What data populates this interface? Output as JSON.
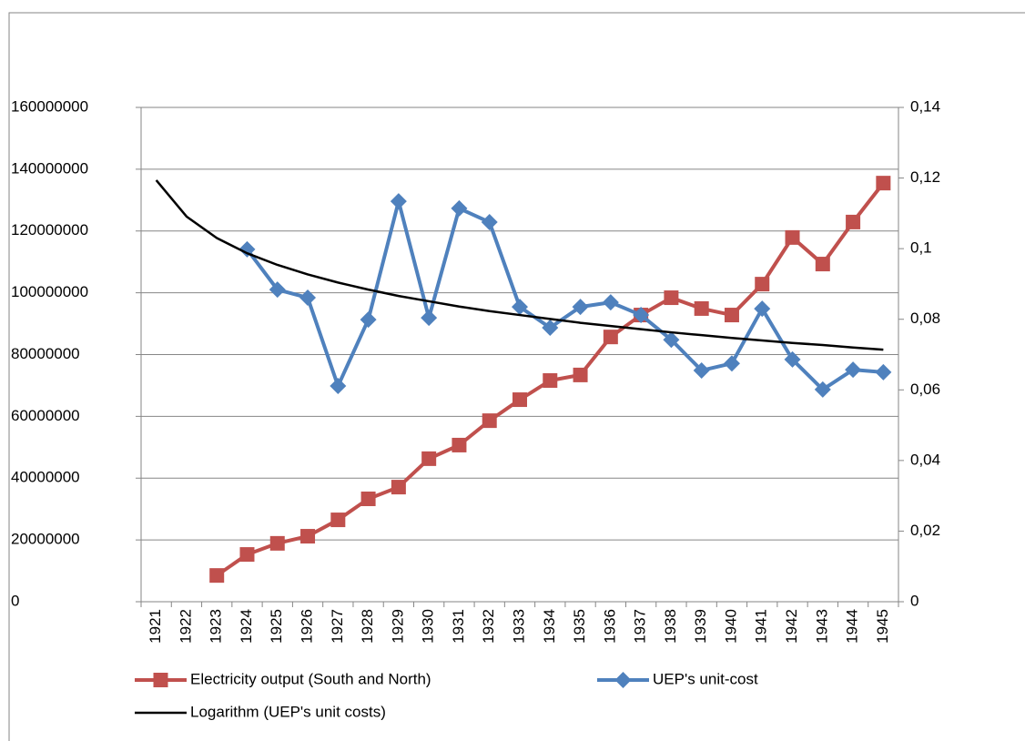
{
  "chart_data": {
    "type": "line",
    "categories": [
      "1921",
      "1922",
      "1923",
      "1924",
      "1925",
      "1926",
      "1927",
      "1928",
      "1929",
      "1930",
      "1931",
      "1932",
      "1933",
      "1934",
      "1935",
      "1936",
      "1937",
      "1938",
      "1939",
      "1940",
      "1941",
      "1942",
      "1943",
      "1944",
      "1945"
    ],
    "series": [
      {
        "name": "Electricity output (South and North)",
        "color": "#c0504d",
        "marker": "square",
        "values": [
          null,
          null,
          8500000,
          15300000,
          18900000,
          21200000,
          26500000,
          33300000,
          37100000,
          46300000,
          50700000,
          58600000,
          65400000,
          71600000,
          73400000,
          85700000,
          92800000,
          98400000,
          94900000,
          92800000,
          102800000,
          117900000,
          109300000,
          122900000,
          135500000
        ]
      },
      {
        "name": "UEP's unit-cost",
        "color": "#4f81bd",
        "marker": "diamond",
        "axis": "y2",
        "values": [
          null,
          null,
          null,
          0.0998,
          0.0884,
          0.0861,
          0.0611,
          0.0799,
          0.1134,
          0.0804,
          0.1114,
          0.1075,
          0.0835,
          0.0776,
          0.0835,
          0.0848,
          0.0812,
          0.0742,
          0.0655,
          0.0675,
          0.083,
          0.0686,
          0.0601,
          0.0657,
          0.065
        ]
      },
      {
        "name": "Logarithm (UEP's unit costs)",
        "color": "#000000",
        "marker": "none",
        "axis": "y2",
        "values": [
          0.1194,
          0.1091,
          0.103,
          0.0987,
          0.0954,
          0.0927,
          0.0904,
          0.0884,
          0.0866,
          0.0851,
          0.0836,
          0.0823,
          0.0812,
          0.0801,
          0.079,
          0.0781,
          0.0772,
          0.0763,
          0.0755,
          0.0747,
          0.074,
          0.0733,
          0.0727,
          0.072,
          0.0714
        ]
      }
    ],
    "ylim": [
      0,
      160000000
    ],
    "yticks": [
      0,
      20000000,
      40000000,
      60000000,
      80000000,
      100000000,
      120000000,
      140000000,
      160000000
    ],
    "y2lim": [
      0,
      0.14
    ],
    "y2ticks": [
      0,
      {
        "value": 0.02,
        "label": "0,02"
      },
      {
        "value": 0.04,
        "label": "0,04"
      },
      {
        "value": 0.06,
        "label": "0,06"
      },
      {
        "value": 0.08,
        "label": "0,08"
      },
      {
        "value": 0.1,
        "label": "0,1"
      },
      {
        "value": 0.12,
        "label": "0,12"
      },
      {
        "value": 0.14,
        "label": "0,14"
      }
    ],
    "grid": true,
    "legend": "bottom"
  }
}
